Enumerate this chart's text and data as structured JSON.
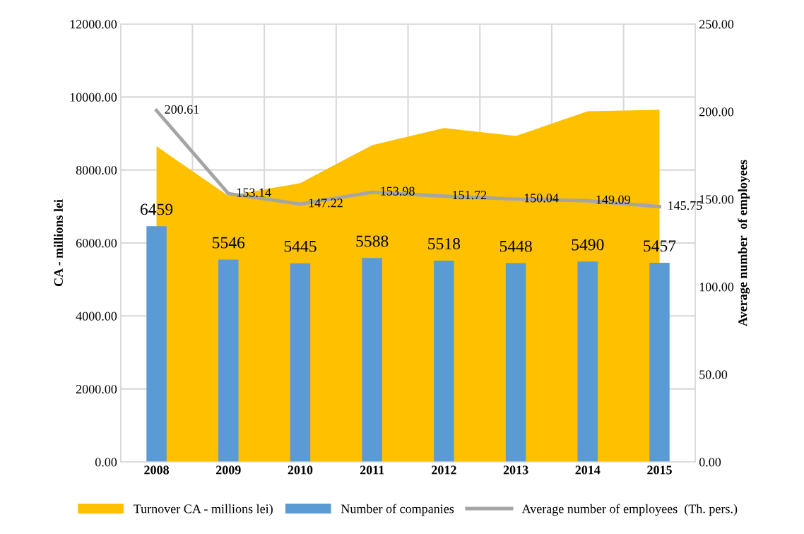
{
  "chart_data": {
    "type": "bar",
    "categories": [
      "2008",
      "2009",
      "2010",
      "2011",
      "2012",
      "2013",
      "2014",
      "2015"
    ],
    "ylabel": "CA - millions lei",
    "y2label": "Average number  of employees",
    "series": [
      {
        "name": "Turnover CA - millions lei)",
        "type": "area",
        "color": "#ffc000",
        "values": [
          8650,
          7290,
          7640,
          8680,
          9150,
          8930,
          9610,
          9650
        ]
      },
      {
        "name": "Number of companies",
        "color": "#5b9bd5",
        "values": [
          6459,
          5546,
          5445,
          5588,
          5518,
          5448,
          5490,
          5457
        ],
        "value_labels": [
          "6459",
          "5546",
          "5445",
          "5588",
          "5518",
          "5448",
          "5490",
          "5457"
        ]
      },
      {
        "name": "Average number of employees  (Th. pers.)",
        "type": "line",
        "axis": "y2",
        "color": "#a5a5a5",
        "values": [
          200.61,
          153.14,
          147.22,
          153.98,
          151.72,
          150.04,
          149.09,
          145.75
        ],
        "value_labels": [
          "200.61",
          "153.14",
          "147.22",
          "153.98",
          "151.72",
          "150.04",
          "149.09",
          "145.75"
        ]
      }
    ],
    "ylim": [
      0,
      12000
    ],
    "yticks": [
      {
        "value": 0,
        "label": "0.00"
      },
      {
        "value": 2000,
        "label": "2000.00"
      },
      {
        "value": 4000,
        "label": "4000.00"
      },
      {
        "value": 6000,
        "label": "6000.00"
      },
      {
        "value": 8000,
        "label": "8000.00"
      },
      {
        "value": 10000,
        "label": "10000.00"
      },
      {
        "value": 12000,
        "label": "12000.00"
      }
    ],
    "y2lim": [
      0,
      250
    ],
    "y2ticks": [
      {
        "value": 0,
        "label": "0.00"
      },
      {
        "value": 50,
        "label": "50.00"
      },
      {
        "value": 100,
        "label": "100.00"
      },
      {
        "value": 150,
        "label": "150.00"
      },
      {
        "value": 200,
        "label": "200.00"
      },
      {
        "value": 250,
        "label": "250.00"
      }
    ],
    "grid": true,
    "legend": "bottom"
  }
}
